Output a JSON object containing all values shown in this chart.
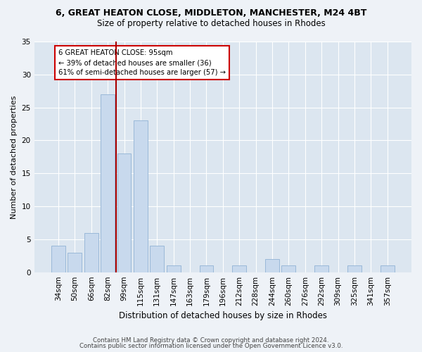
{
  "title_line1": "6, GREAT HEATON CLOSE, MIDDLETON, MANCHESTER, M24 4BT",
  "title_line2": "Size of property relative to detached houses in Rhodes",
  "xlabel": "Distribution of detached houses by size in Rhodes",
  "ylabel": "Number of detached properties",
  "categories": [
    "34sqm",
    "50sqm",
    "66sqm",
    "82sqm",
    "99sqm",
    "115sqm",
    "131sqm",
    "147sqm",
    "163sqm",
    "179sqm",
    "196sqm",
    "212sqm",
    "228sqm",
    "244sqm",
    "260sqm",
    "276sqm",
    "292sqm",
    "309sqm",
    "325sqm",
    "341sqm",
    "357sqm"
  ],
  "values": [
    4,
    3,
    6,
    27,
    18,
    23,
    4,
    1,
    0,
    1,
    0,
    1,
    0,
    2,
    1,
    0,
    1,
    0,
    1,
    0,
    1
  ],
  "bar_color": "#c8d9ed",
  "bar_edge_color": "#9ab8d8",
  "vline_color": "#aa0000",
  "vline_pos": 3.5,
  "annotation_text": "6 GREAT HEATON CLOSE: 95sqm\n← 39% of detached houses are smaller (36)\n61% of semi-detached houses are larger (57) →",
  "annotation_box_color": "white",
  "annotation_box_edge_color": "#cc0000",
  "ylim": [
    0,
    35
  ],
  "yticks": [
    0,
    5,
    10,
    15,
    20,
    25,
    30,
    35
  ],
  "footer_line1": "Contains HM Land Registry data © Crown copyright and database right 2024.",
  "footer_line2": "Contains public sector information licensed under the Open Government Licence v3.0.",
  "bg_color": "#eef2f7",
  "plot_bg_color": "#dce6f0",
  "title_fontsize": 9,
  "subtitle_fontsize": 8.5,
  "ylabel_fontsize": 8,
  "xlabel_fontsize": 8.5,
  "tick_fontsize": 7.5,
  "footer_fontsize": 6.2
}
